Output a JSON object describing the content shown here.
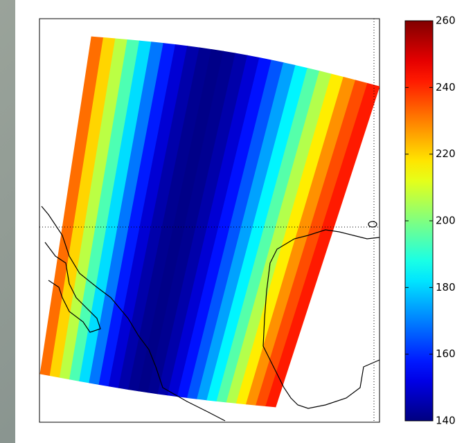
{
  "chart_data": {
    "type": "swath",
    "colormap": "jet",
    "clim": [
      140,
      260
    ],
    "cticks": [
      140,
      160,
      180,
      200,
      220,
      240,
      260
    ],
    "values": [
      232,
      220,
      207,
      194,
      181,
      169,
      158,
      150,
      145,
      142,
      141,
      142,
      145,
      150,
      157,
      165,
      174,
      184,
      195,
      206,
      217,
      228,
      236,
      242
    ]
  }
}
